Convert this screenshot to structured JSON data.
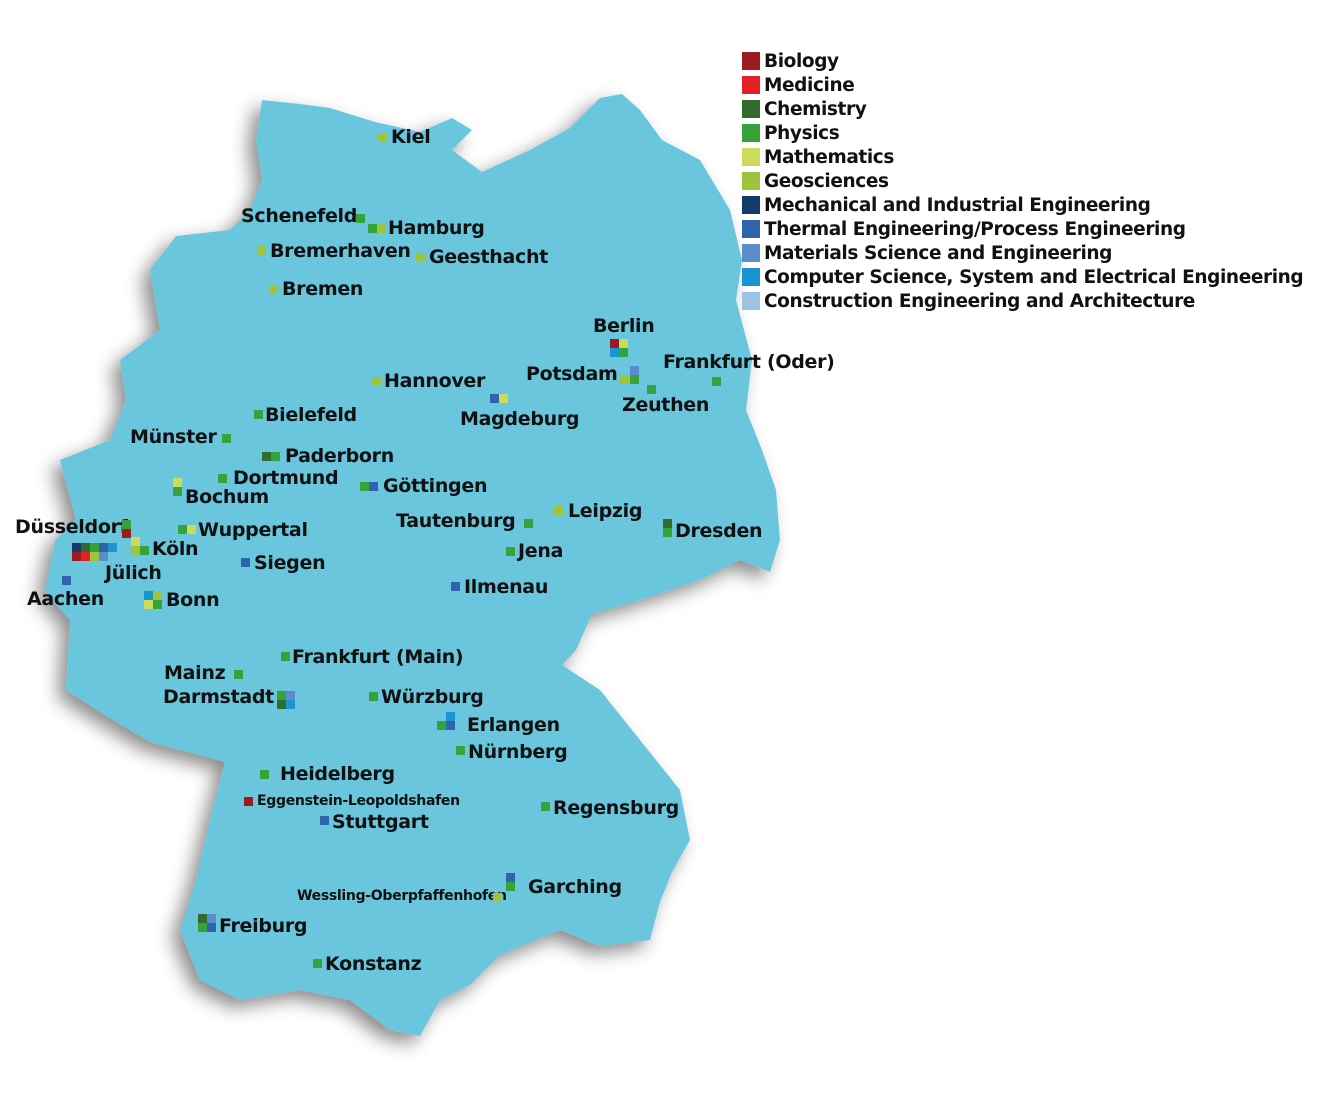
{
  "legend": [
    {
      "key": "biology",
      "label": "Biology",
      "color": "#9b1b1e"
    },
    {
      "key": "medicine",
      "label": "Medicine",
      "color": "#e32024"
    },
    {
      "key": "chemistry",
      "label": "Chemistry",
      "color": "#336a2e"
    },
    {
      "key": "physics",
      "label": "Physics",
      "color": "#36a23a"
    },
    {
      "key": "mathematics",
      "label": "Mathematics",
      "color": "#cddb5b"
    },
    {
      "key": "geosciences",
      "label": "Geosciences",
      "color": "#9cc43c"
    },
    {
      "key": "mechanical",
      "label": "Mechanical and Industrial Engineering",
      "color": "#123a6b"
    },
    {
      "key": "thermal",
      "label": "Thermal Engineering/Process Engineering",
      "color": "#2e63ae"
    },
    {
      "key": "materials",
      "label": "Materials Science and Engineering",
      "color": "#5b8ccc"
    },
    {
      "key": "cs",
      "label": "Computer Science, System and Electrical Engineering",
      "color": "#1a95d2"
    },
    {
      "key": "construction",
      "label": "Construction Engineering and Architecture",
      "color": "#9cc3e3"
    }
  ],
  "map_color": "#6bc6dc",
  "cities": [
    {
      "name": "Kiel",
      "disciplines": [
        "geosciences"
      ]
    },
    {
      "name": "Schenefeld",
      "disciplines": [
        "physics"
      ]
    },
    {
      "name": "Hamburg",
      "disciplines": [
        "physics",
        "geosciences"
      ]
    },
    {
      "name": "Bremerhaven",
      "disciplines": [
        "geosciences"
      ]
    },
    {
      "name": "Geesthacht",
      "disciplines": [
        "geosciences"
      ]
    },
    {
      "name": "Bremen",
      "disciplines": [
        "geosciences"
      ]
    },
    {
      "name": "Berlin",
      "disciplines": [
        "biology",
        "mathematics",
        "cs",
        "physics"
      ]
    },
    {
      "name": "Potsdam",
      "disciplines": [
        "geosciences",
        "physics",
        "materials"
      ]
    },
    {
      "name": "Zeuthen",
      "disciplines": [
        "physics"
      ]
    },
    {
      "name": "Frankfurt (Oder)",
      "disciplines": [
        "physics"
      ]
    },
    {
      "name": "Hannover",
      "disciplines": [
        "geosciences"
      ]
    },
    {
      "name": "Magdeburg",
      "disciplines": [
        "thermal",
        "mathematics"
      ]
    },
    {
      "name": "Bielefeld",
      "disciplines": [
        "physics"
      ]
    },
    {
      "name": "Münster",
      "disciplines": [
        "physics"
      ]
    },
    {
      "name": "Paderborn",
      "disciplines": [
        "chemistry",
        "physics"
      ]
    },
    {
      "name": "Dortmund",
      "disciplines": [
        "physics"
      ]
    },
    {
      "name": "Bochum",
      "disciplines": [
        "mathematics",
        "physics"
      ]
    },
    {
      "name": "Göttingen",
      "disciplines": [
        "physics",
        "thermal"
      ]
    },
    {
      "name": "Leipzig",
      "disciplines": [
        "geosciences"
      ]
    },
    {
      "name": "Tautenburg",
      "disciplines": [
        "physics"
      ]
    },
    {
      "name": "Dresden",
      "disciplines": [
        "chemistry",
        "physics"
      ]
    },
    {
      "name": "Jena",
      "disciplines": [
        "physics"
      ]
    },
    {
      "name": "Wuppertal",
      "disciplines": [
        "physics",
        "mathematics"
      ]
    },
    {
      "name": "Düsseldorf",
      "disciplines": [
        "physics",
        "biology"
      ]
    },
    {
      "name": "Köln",
      "disciplines": [
        "mathematics",
        "geosciences",
        "physics"
      ]
    },
    {
      "name": "Jülich",
      "disciplines": [
        "mechanical",
        "chemistry",
        "physics",
        "thermal",
        "cs",
        "biology",
        "medicine",
        "geosciences",
        "materials"
      ]
    },
    {
      "name": "Aachen",
      "disciplines": [
        "thermal"
      ]
    },
    {
      "name": "Bonn",
      "disciplines": [
        "cs",
        "geosciences",
        "mathematics",
        "physics"
      ]
    },
    {
      "name": "Siegen",
      "disciplines": [
        "thermal"
      ]
    },
    {
      "name": "Ilmenau",
      "disciplines": [
        "thermal"
      ]
    },
    {
      "name": "Frankfurt (Main)",
      "disciplines": [
        "physics"
      ]
    },
    {
      "name": "Mainz",
      "disciplines": [
        "physics"
      ]
    },
    {
      "name": "Darmstadt",
      "disciplines": [
        "physics",
        "materials",
        "chemistry",
        "cs"
      ]
    },
    {
      "name": "Würzburg",
      "disciplines": [
        "physics"
      ]
    },
    {
      "name": "Erlangen",
      "disciplines": [
        "cs",
        "physics",
        "thermal"
      ]
    },
    {
      "name": "Nürnberg",
      "disciplines": [
        "physics"
      ]
    },
    {
      "name": "Heidelberg",
      "disciplines": [
        "physics"
      ]
    },
    {
      "name": "Eggenstein-Leopoldshafen",
      "disciplines": [
        "biology"
      ]
    },
    {
      "name": "Stuttgart",
      "disciplines": [
        "thermal"
      ]
    },
    {
      "name": "Regensburg",
      "disciplines": [
        "physics"
      ]
    },
    {
      "name": "Garching",
      "disciplines": [
        "thermal",
        "physics"
      ]
    },
    {
      "name": "Wessling-Oberpfaffenhofen",
      "disciplines": [
        "geosciences"
      ]
    },
    {
      "name": "Freiburg",
      "disciplines": [
        "chemistry",
        "materials",
        "physics",
        "thermal"
      ]
    },
    {
      "name": "Konstanz",
      "disciplines": [
        "physics"
      ]
    }
  ]
}
